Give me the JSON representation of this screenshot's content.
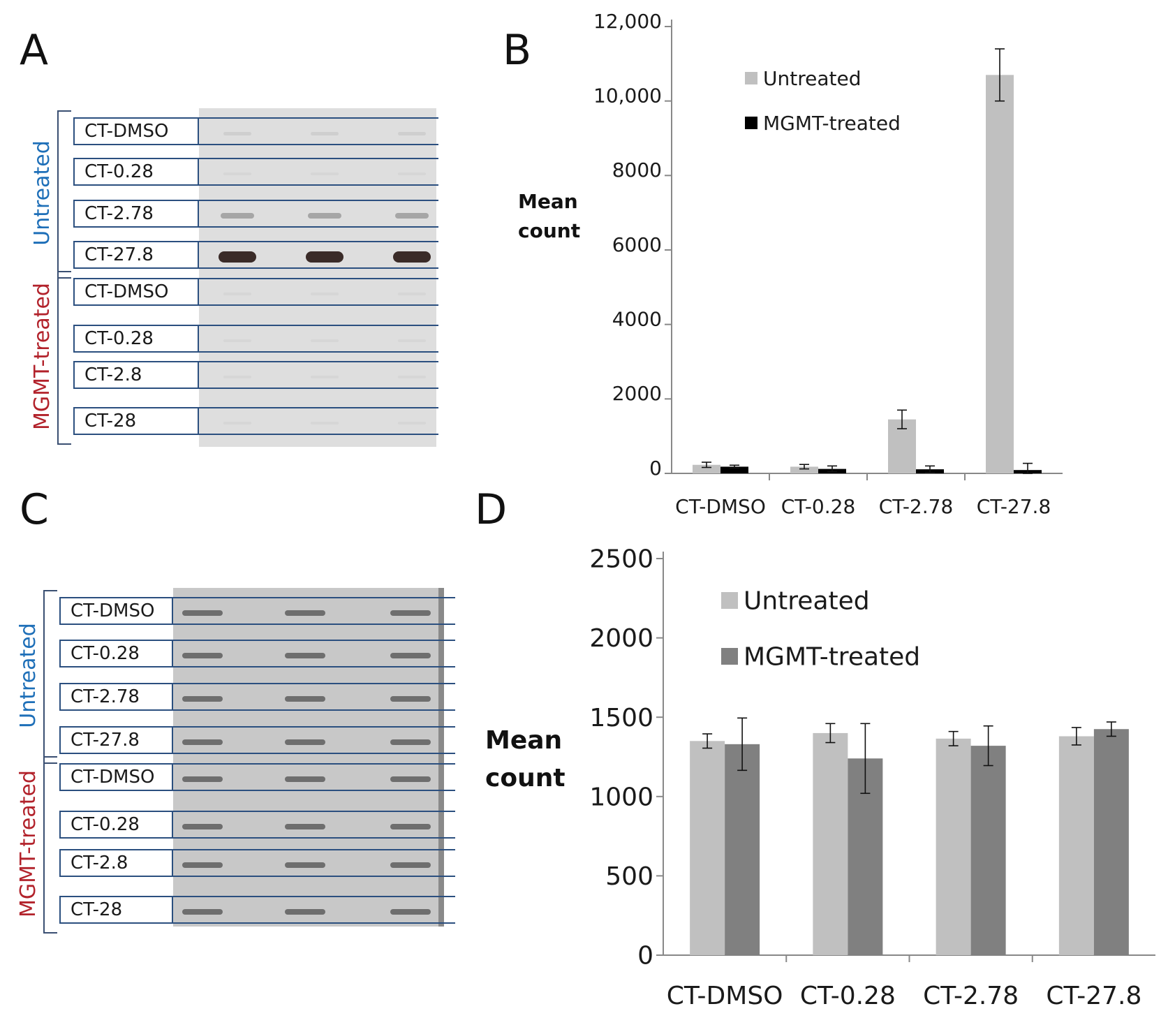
{
  "panels": {
    "a": {
      "letter": "A",
      "groups": [
        {
          "label": "Untreated",
          "lanes": [
            "CT-DMSO",
            "CT-0.28",
            "CT-2.78",
            "CT-27.8"
          ]
        },
        {
          "label": "MGMT-treated",
          "lanes": [
            "CT-DMSO",
            "CT-0.28",
            "CT-2.8",
            "CT-28"
          ]
        }
      ]
    },
    "b": {
      "letter": "B"
    },
    "c": {
      "letter": "C",
      "groups": [
        {
          "label": "Untreated",
          "lanes": [
            "CT-DMSO",
            "CT-0.28",
            "CT-2.78",
            "CT-27.8"
          ]
        },
        {
          "label": "MGMT-treated",
          "lanes": [
            "CT-DMSO",
            "CT-0.28",
            "CT-2.8",
            "CT-28"
          ]
        }
      ]
    },
    "d": {
      "letter": "D"
    }
  },
  "colors": {
    "untreated": "#c0c0c0",
    "treated_b": "#000000",
    "treated_d": "#808080",
    "lane_border": "#2b4f7f",
    "untreated_text": "#1e6fb8",
    "treated_text": "#b2222b"
  },
  "chart_data": [
    {
      "id": "B",
      "type": "bar",
      "ylabel": "Mean\ncount",
      "ylabel_lines": [
        "Mean",
        "count"
      ],
      "categories": [
        "CT-DMSO",
        "CT-0.28",
        "CT-2.78",
        "CT-27.8"
      ],
      "ylim": [
        0,
        12000
      ],
      "yticks": [
        0,
        2000,
        4000,
        6000,
        8000,
        10000,
        12000
      ],
      "ytick_labels": [
        "0",
        "2000",
        "4000",
        "6000",
        "8000",
        "10,000",
        "12,000"
      ],
      "legend_position": "top-right",
      "grid": false,
      "series": [
        {
          "name": "Untreated",
          "values": [
            230,
            180,
            1450,
            10700
          ],
          "errors": [
            70,
            60,
            250,
            700
          ]
        },
        {
          "name": "MGMT-treated",
          "values": [
            180,
            120,
            110,
            90
          ],
          "errors": [
            40,
            80,
            90,
            180
          ]
        }
      ]
    },
    {
      "id": "D",
      "type": "bar",
      "ylabel": "Mean\ncount",
      "ylabel_lines": [
        "Mean",
        "count"
      ],
      "categories": [
        "CT-DMSO",
        "CT-0.28",
        "CT-2.78",
        "CT-27.8"
      ],
      "ylim": [
        0,
        2500
      ],
      "yticks": [
        0,
        500,
        1000,
        1500,
        2000,
        2500
      ],
      "ytick_labels": [
        "0",
        "500",
        "1000",
        "1500",
        "2000",
        "2500"
      ],
      "legend_position": "top-left",
      "grid": false,
      "series": [
        {
          "name": "Untreated",
          "values": [
            1350,
            1400,
            1365,
            1380
          ],
          "errors": [
            45,
            60,
            45,
            55
          ]
        },
        {
          "name": "MGMT-treated",
          "values": [
            1330,
            1240,
            1320,
            1425
          ],
          "errors": [
            165,
            220,
            125,
            45
          ]
        }
      ]
    }
  ]
}
